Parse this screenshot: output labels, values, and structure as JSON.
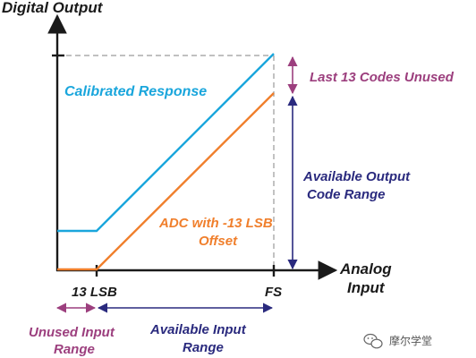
{
  "axes": {
    "y_label": "Digital Output",
    "x_label_line1": "Analog",
    "x_label_line2": "Input",
    "tick_lsb": "13 LSB",
    "tick_fs": "FS"
  },
  "curves": {
    "calibrated": {
      "label": "Calibrated Response",
      "color": "#1aa6dc"
    },
    "offset": {
      "label_line1": "ADC with -13 LSB",
      "label_line2": "Offset",
      "color": "#f07f2c"
    }
  },
  "annotations": {
    "unused_codes": "Last 13 Codes Unused",
    "output_range_line1": "Available Output",
    "output_range_line2": "Code Range",
    "unused_input_line1": "Unused Input",
    "unused_input_line2": "Range",
    "available_input_line1": "Available Input",
    "available_input_line2": "Range"
  },
  "colors": {
    "purple": "#9c3f7e",
    "navy": "#2a2a7e",
    "axis": "#1a1a1a",
    "guide": "#9a9a9a"
  },
  "watermark": {
    "text": "摩尔学堂",
    "icon": "wechat-icon"
  }
}
